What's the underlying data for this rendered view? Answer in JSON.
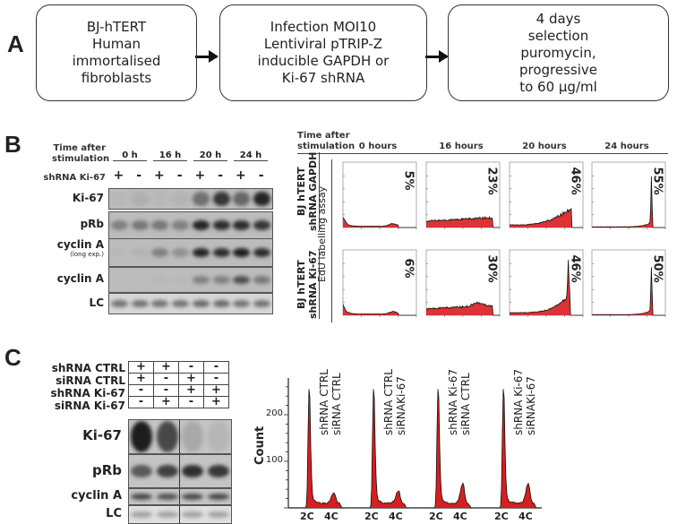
{
  "panel_a": {
    "label": "A",
    "boxes": [
      {
        "lines": [
          "BJ-hTERT",
          "Human",
          "immortalised",
          "fibroblasts"
        ]
      },
      {
        "lines": [
          "Infection MOI10",
          "Lentiviral pTRIP-Z",
          "inducible GAPDH or",
          "Ki-67 shRNA"
        ]
      },
      {
        "lines": [
          "4 days",
          "selection",
          "puromycin,",
          "progressive",
          "to 60 μg/ml"
        ]
      }
    ]
  },
  "panel_b": {
    "label": "B",
    "blot": {
      "header_line1": "Time after",
      "header_line2": "stimulation",
      "times": [
        "0 h",
        "16 h",
        "20 h",
        "24 h"
      ],
      "shrna_label": "shRNA Ki-67",
      "signs": [
        "+",
        "-",
        "+",
        "-",
        "+",
        "-",
        "+",
        "-"
      ],
      "rows": [
        {
          "label": "Ki-67",
          "sub": "",
          "intensity": [
            0.02,
            0.08,
            0.03,
            0.05,
            0.45,
            0.8,
            0.5,
            0.9
          ]
        },
        {
          "label": "pRb",
          "sub": "",
          "intensity": [
            0.35,
            0.4,
            0.4,
            0.35,
            0.9,
            0.85,
            0.85,
            0.8
          ]
        },
        {
          "label": "cyclin A",
          "sub": "(long exp.)",
          "intensity": [
            0.02,
            0.05,
            0.35,
            0.25,
            0.9,
            0.85,
            0.95,
            0.85
          ]
        },
        {
          "label": "cyclin A",
          "sub": "",
          "intensity": [
            0.0,
            0.0,
            0.03,
            0.02,
            0.35,
            0.35,
            0.65,
            0.4
          ]
        },
        {
          "label": "LC",
          "sub": "",
          "intensity": [
            0.5,
            0.5,
            0.5,
            0.5,
            0.55,
            0.55,
            0.5,
            0.5
          ]
        }
      ]
    },
    "edu": {
      "header_line1": "Time after",
      "header_line2": "stimulation",
      "times": [
        "0 hours",
        "16 hours",
        "20 hours",
        "24 hours"
      ],
      "assay_label": "EdU labelling assay",
      "rows": [
        {
          "line1": "BJ hTERT",
          "line2": "shRNA GAPDH",
          "percentages": [
            "5%",
            "23%",
            "46%",
            "55%"
          ]
        },
        {
          "line1": "BJ hTERT",
          "line2": "shRNA Ki-67",
          "percentages": [
            "6%",
            "30%",
            "46%",
            "50%"
          ]
        }
      ]
    }
  },
  "panel_c": {
    "label": "C",
    "conditions": [
      {
        "label": "shRNA CTRL",
        "values": [
          "+",
          "+",
          "-",
          "-"
        ]
      },
      {
        "label": "siRNA CTRL",
        "values": [
          "+",
          "-",
          "+",
          "-"
        ]
      },
      {
        "label": "shRNA Ki-67",
        "values": [
          "-",
          "-",
          "+",
          "+"
        ]
      },
      {
        "label": "siRNA Ki-67",
        "values": [
          "-",
          "+",
          "-",
          "+"
        ]
      }
    ],
    "blot_rows": [
      {
        "label": "Ki-67",
        "intensity": [
          0.95,
          0.7,
          0.15,
          0.08
        ]
      },
      {
        "label": "pRb",
        "intensity": [
          0.6,
          0.75,
          0.85,
          0.8
        ]
      },
      {
        "label": "cyclin A",
        "intensity": [
          0.7,
          0.65,
          0.7,
          0.7
        ]
      },
      {
        "label": "LC",
        "intensity": [
          0.3,
          0.3,
          0.3,
          0.3
        ]
      }
    ]
  },
  "chart_data": {
    "type": "area",
    "title": "",
    "ylabel": "Count",
    "ylim": [
      0,
      270
    ],
    "yticks": [
      "100",
      "200"
    ],
    "ytick_values": [
      100,
      200
    ],
    "xtick_labels": [
      "2C",
      "4C"
    ],
    "series": [
      {
        "name_line1": "shRNA CTRL",
        "name_line2": "siRNA CTRL",
        "peak_2c": 255,
        "peak_4c": 24,
        "sphase": 10
      },
      {
        "name_line1": "shRNA CTRL",
        "name_line2": "siRNAKi-67",
        "peak_2c": 255,
        "peak_4c": 27,
        "sphase": 10
      },
      {
        "name_line1": "shRNA Ki-67",
        "name_line2": "siRNA CTRL",
        "peak_2c": 255,
        "peak_4c": 42,
        "sphase": 10
      },
      {
        "name_line1": "shRNA Ki-67",
        "name_line2": "siRNAKi-67",
        "peak_2c": 255,
        "peak_4c": 42,
        "sphase": 10
      }
    ],
    "fill_color": "#d81e1e"
  }
}
